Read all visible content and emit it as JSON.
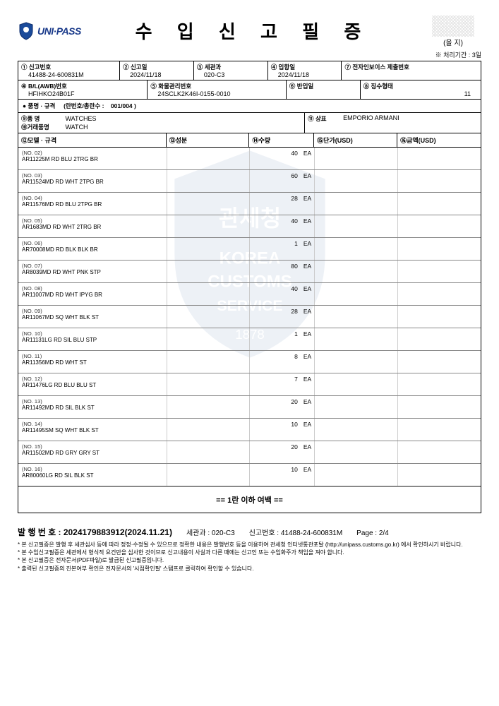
{
  "header": {
    "logo_text": "UNI·PASS",
    "title": "수 입 신 고 필 증",
    "stamp_label": "(을 지)",
    "processing_time": "※ 처리기간 : 3일"
  },
  "info": {
    "f1_label": "① 신고번호",
    "f1_value": "41488-24-600831M",
    "f2_label": "② 신고일",
    "f2_value": "2024/11/18",
    "f3_label": "③ 세관과",
    "f3_value": "020-C3",
    "f4_label": "④ 입항일",
    "f4_value": "2024/11/18",
    "f5_label": "⑦ 전자인보이스 제출번호",
    "f6_label": "④ B/L(AWB)번호",
    "f6_value": "HFIHKO24B01F",
    "f7_label": "⑤ 화물관리번호",
    "f7_value": "24SCLK2K46I-0155-0010",
    "f8_label": "⑥ 반입일",
    "f9_label": "⑧ 징수형태",
    "f9_value": "11"
  },
  "spec": {
    "label": "● 품명 · 규격",
    "sublabel": "(란번호/총란수 :",
    "value": "001/004 )"
  },
  "names": {
    "name_label": "⑨품     명",
    "name_value": "WATCHES",
    "trade_label": "⑩거래품명",
    "trade_value": "WATCH",
    "brand_label": "⑪ 상표",
    "brand_value": "EMPORIO ARMANI"
  },
  "columns": {
    "model": "⑫모델 · 규격",
    "comp": "⑬성분",
    "qty": "⑭수량",
    "unit": "⑮단가(USD)",
    "amt": "⑯금액(USD)"
  },
  "items": [
    {
      "no": "(NO. 02)",
      "model": "AR11225M RD BLU 2TRG BR",
      "qty": "40",
      "unit": "EA"
    },
    {
      "no": "(NO. 03)",
      "model": "AR11524MD RD WHT 2TPG BR",
      "qty": "60",
      "unit": "EA"
    },
    {
      "no": "(NO. 04)",
      "model": "AR11576MD RD BLU 2TPG BR",
      "qty": "28",
      "unit": "EA"
    },
    {
      "no": "(NO. 05)",
      "model": "AR1683MD RD WHT 2TRG BR",
      "qty": "40",
      "unit": "EA"
    },
    {
      "no": "(NO. 06)",
      "model": "AR70008MD RD BLK BLK BR",
      "qty": "1",
      "unit": "EA"
    },
    {
      "no": "(NO. 07)",
      "model": "AR8039MD RD WHT PNK STP",
      "qty": "80",
      "unit": "EA"
    },
    {
      "no": "(NO. 08)",
      "model": "AR11007MD RD WHT IPYG BR",
      "qty": "40",
      "unit": "EA"
    },
    {
      "no": "(NO. 09)",
      "model": "AR11067MD SQ WHT BLK ST",
      "qty": "28",
      "unit": "EA"
    },
    {
      "no": "(NO. 10)",
      "model": "AR11131LG RD SIL BLU STP",
      "qty": "1",
      "unit": "EA"
    },
    {
      "no": "(NO. 11)",
      "model": "AR11356MD RD WHT ST",
      "qty": "8",
      "unit": "EA"
    },
    {
      "no": "(NO. 12)",
      "model": "AR11476LG RD BLU BLU ST",
      "qty": "7",
      "unit": "EA"
    },
    {
      "no": "(NO. 13)",
      "model": "AR11492MD RD SIL BLK ST",
      "qty": "20",
      "unit": "EA"
    },
    {
      "no": "(NO. 14)",
      "model": "AR11495SM SQ WHT BLK ST",
      "qty": "10",
      "unit": "EA"
    },
    {
      "no": "(NO. 15)",
      "model": "AR11502MD RD GRY GRY ST",
      "qty": "20",
      "unit": "EA"
    },
    {
      "no": "(NO. 16)",
      "model": "AR80060LG RD SIL BLK ST",
      "qty": "10",
      "unit": "EA"
    }
  ],
  "blank_note": "==  1란 이하 여백  ==",
  "footer": {
    "issue_label": "발 행 번 호 : 2024179883912(2024.11.21)",
    "segwan": "세관과 :  020-C3",
    "singo": "신고번호 : 41488-24-600831M",
    "page": "Page :  2/4",
    "notes": [
      "본 신고필증은 발행 후 세관심사 등에 따라 정정·수정될 수 있으므로 정확한 내용은 발행번호 등을 이용하여 관세청 인터넷통관포탈 (http://unipass.customs.go.kr) 에서 확인하시기 바랍니다.",
      "본 수입신고필증은 세관에서 형식적 요건만을 심사한 것이므로 신고내용이 사실과 다른 때에는 신고인 또는 수입화주가 책임을 져야 합니다.",
      "본 신고필증은 전자문서(PDF파일)로 발급된 신고필증입니다.",
      "출력된 신고필증의 진본여부 확인은 전자문서의 '시점확인필' 스탬프로 클릭하여 확인할 수 있습니다."
    ]
  },
  "colors": {
    "border": "#000000",
    "text": "#000000",
    "logo_blue": "#1a3a8a",
    "watermark_blue": "#2a5a9a"
  }
}
